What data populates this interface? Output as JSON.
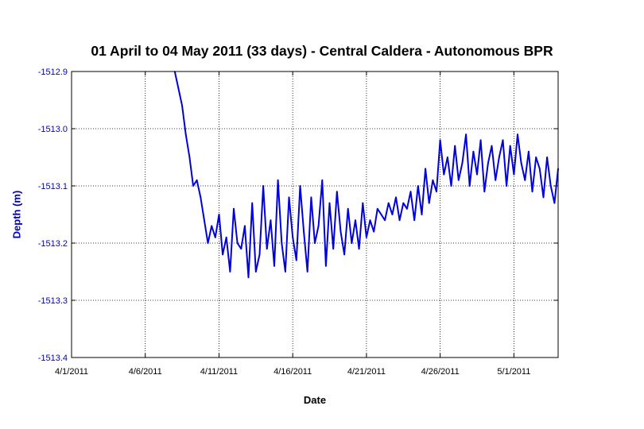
{
  "chart_data": {
    "type": "line",
    "title": "01 April to 04 May 2011 (33 days) - Central Caldera - Autonomous BPR",
    "xlabel": "Date",
    "ylabel": "Depth (m)",
    "xlim": [
      "2011-04-01",
      "2011-05-04"
    ],
    "ylim": [
      -1513.4,
      -1512.9
    ],
    "x_ticks": [
      {
        "date": "2011-04-01",
        "label": "4/1/2011"
      },
      {
        "date": "2011-04-06",
        "label": "4/6/2011"
      },
      {
        "date": "2011-04-11",
        "label": "4/11/2011"
      },
      {
        "date": "2011-04-16",
        "label": "4/16/2011"
      },
      {
        "date": "2011-04-21",
        "label": "4/21/2011"
      },
      {
        "date": "2011-04-26",
        "label": "4/26/2011"
      },
      {
        "date": "2011-05-01",
        "label": "5/1/2011"
      }
    ],
    "y_ticks": [
      {
        "value": -1512.9,
        "label": "-1512.9"
      },
      {
        "value": -1513.0,
        "label": "-1513.0"
      },
      {
        "value": -1513.1,
        "label": "-1513.1"
      },
      {
        "value": -1513.2,
        "label": "-1513.2"
      },
      {
        "value": -1513.3,
        "label": "-1513.3"
      },
      {
        "value": -1513.4,
        "label": "-1513.4"
      }
    ],
    "grid": true,
    "grid_style": "dotted",
    "line_color": "#0000dd",
    "series": [
      {
        "x": [
          "2011-04-08 00:00",
          "2011-04-08 06:00",
          "2011-04-08 12:00",
          "2011-04-08 18:00",
          "2011-04-09 00:00",
          "2011-04-09 06:00",
          "2011-04-09 12:00",
          "2011-04-09 18:00",
          "2011-04-10 00:00",
          "2011-04-10 06:00",
          "2011-04-10 12:00",
          "2011-04-10 18:00",
          "2011-04-11 00:00",
          "2011-04-11 06:00",
          "2011-04-11 12:00",
          "2011-04-11 18:00",
          "2011-04-12 00:00",
          "2011-04-12 06:00",
          "2011-04-12 12:00",
          "2011-04-12 18:00",
          "2011-04-13 00:00",
          "2011-04-13 06:00",
          "2011-04-13 12:00",
          "2011-04-13 18:00",
          "2011-04-14 00:00",
          "2011-04-14 06:00",
          "2011-04-14 12:00",
          "2011-04-14 18:00",
          "2011-04-15 00:00",
          "2011-04-15 06:00",
          "2011-04-15 12:00",
          "2011-04-15 18:00",
          "2011-04-16 00:00",
          "2011-04-16 06:00",
          "2011-04-16 12:00",
          "2011-04-16 18:00",
          "2011-04-17 00:00",
          "2011-04-17 06:00",
          "2011-04-17 12:00",
          "2011-04-17 18:00",
          "2011-04-18 00:00",
          "2011-04-18 06:00",
          "2011-04-18 12:00",
          "2011-04-18 18:00",
          "2011-04-19 00:00",
          "2011-04-19 06:00",
          "2011-04-19 12:00",
          "2011-04-19 18:00",
          "2011-04-20 00:00",
          "2011-04-20 06:00",
          "2011-04-20 12:00",
          "2011-04-20 18:00",
          "2011-04-21 00:00",
          "2011-04-21 06:00",
          "2011-04-21 12:00",
          "2011-04-21 18:00",
          "2011-04-22 00:00",
          "2011-04-22 06:00",
          "2011-04-22 12:00",
          "2011-04-22 18:00",
          "2011-04-23 00:00",
          "2011-04-23 06:00",
          "2011-04-23 12:00",
          "2011-04-23 18:00",
          "2011-04-24 00:00",
          "2011-04-24 06:00",
          "2011-04-24 12:00",
          "2011-04-24 18:00",
          "2011-04-25 00:00",
          "2011-04-25 06:00",
          "2011-04-25 12:00",
          "2011-04-25 18:00",
          "2011-04-26 00:00",
          "2011-04-26 06:00",
          "2011-04-26 12:00",
          "2011-04-26 18:00",
          "2011-04-27 00:00",
          "2011-04-27 06:00",
          "2011-04-27 12:00",
          "2011-04-27 18:00",
          "2011-04-28 00:00",
          "2011-04-28 06:00",
          "2011-04-28 12:00",
          "2011-04-28 18:00",
          "2011-04-29 00:00",
          "2011-04-29 06:00",
          "2011-04-29 12:00",
          "2011-04-29 18:00",
          "2011-04-30 00:00",
          "2011-04-30 06:00",
          "2011-04-30 12:00",
          "2011-04-30 18:00",
          "2011-05-01 00:00",
          "2011-05-01 06:00",
          "2011-05-01 12:00",
          "2011-05-01 18:00",
          "2011-05-02 00:00",
          "2011-05-02 06:00",
          "2011-05-02 12:00",
          "2011-05-02 18:00",
          "2011-05-03 00:00",
          "2011-05-03 06:00",
          "2011-05-03 12:00",
          "2011-05-03 18:00",
          "2011-05-04 00:00"
        ],
        "y": [
          -1512.9,
          -1512.93,
          -1512.96,
          -1513.01,
          -1513.05,
          -1513.1,
          -1513.09,
          -1513.12,
          -1513.16,
          -1513.2,
          -1513.17,
          -1513.19,
          -1513.15,
          -1513.22,
          -1513.19,
          -1513.25,
          -1513.14,
          -1513.2,
          -1513.21,
          -1513.17,
          -1513.26,
          -1513.13,
          -1513.25,
          -1513.22,
          -1513.1,
          -1513.21,
          -1513.16,
          -1513.24,
          -1513.09,
          -1513.2,
          -1513.25,
          -1513.12,
          -1513.19,
          -1513.23,
          -1513.1,
          -1513.18,
          -1513.25,
          -1513.12,
          -1513.2,
          -1513.17,
          -1513.09,
          -1513.24,
          -1513.13,
          -1513.21,
          -1513.11,
          -1513.18,
          -1513.22,
          -1513.14,
          -1513.2,
          -1513.16,
          -1513.21,
          -1513.13,
          -1513.19,
          -1513.16,
          -1513.18,
          -1513.14,
          -1513.15,
          -1513.16,
          -1513.13,
          -1513.15,
          -1513.12,
          -1513.16,
          -1513.13,
          -1513.14,
          -1513.11,
          -1513.16,
          -1513.1,
          -1513.15,
          -1513.07,
          -1513.13,
          -1513.09,
          -1513.11,
          -1513.02,
          -1513.08,
          -1513.05,
          -1513.1,
          -1513.03,
          -1513.09,
          -1513.06,
          -1513.01,
          -1513.1,
          -1513.04,
          -1513.08,
          -1513.02,
          -1513.11,
          -1513.06,
          -1513.03,
          -1513.09,
          -1513.05,
          -1513.02,
          -1513.1,
          -1513.03,
          -1513.08,
          -1513.01,
          -1513.06,
          -1513.09,
          -1513.04,
          -1513.11,
          -1513.05,
          -1513.07,
          -1513.12,
          -1513.05,
          -1513.1,
          -1513.13,
          -1513.07
        ]
      }
    ]
  }
}
